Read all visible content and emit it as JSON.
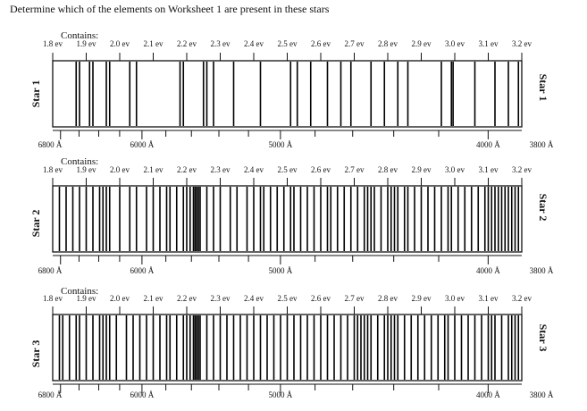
{
  "heading": "Determine which of the elements on Worksheet 1 are present in these stars",
  "contains_label": "Contains:",
  "ev_ticks": [
    "1.8 ev",
    "1.9 ev",
    "2.0 ev",
    "2.1 ev",
    "2.2 ev",
    "2.3 ev",
    "2.4 ev",
    "2.5 ev",
    "2.6 ev",
    "2.7 ev",
    "2.8 ev",
    "2.9 ev",
    "3.0 ev",
    "3.1 ev",
    "3.2 ev"
  ],
  "wavelength_ticks": [
    "6800 Å",
    "6000 Å",
    "5000 Å",
    "4000 Å",
    "3800 Å"
  ],
  "stars": [
    {
      "name": "Star 1",
      "line_energies_ev": [
        1.87,
        1.88,
        1.91,
        1.92,
        1.96,
        1.97,
        2.03,
        2.05,
        2.18,
        2.19,
        2.25,
        2.26,
        2.28,
        2.34,
        2.42,
        2.51,
        2.53,
        2.57,
        2.62,
        2.66,
        2.69,
        2.75,
        2.79,
        2.83,
        2.86,
        2.96,
        2.99,
        2.995,
        3.06,
        3.12,
        3.16,
        3.19
      ]
    },
    {
      "name": "Star 2",
      "line_energies_ev": [
        1.82,
        1.84,
        1.86,
        1.88,
        1.9,
        1.92,
        1.94,
        1.95,
        1.96,
        1.97,
        2.0,
        2.03,
        2.05,
        2.08,
        2.1,
        2.12,
        2.14,
        2.15,
        2.17,
        2.19,
        2.2,
        2.21,
        2.22,
        2.225,
        2.23,
        2.235,
        2.24,
        2.26,
        2.28,
        2.3,
        2.33,
        2.35,
        2.38,
        2.4,
        2.42,
        2.43,
        2.45,
        2.47,
        2.49,
        2.51,
        2.52,
        2.54,
        2.56,
        2.58,
        2.6,
        2.62,
        2.63,
        2.65,
        2.67,
        2.69,
        2.71,
        2.73,
        2.74,
        2.75,
        2.76,
        2.78,
        2.8,
        2.81,
        2.82,
        2.83,
        2.85,
        2.86,
        2.88,
        2.9,
        2.92,
        2.94,
        2.96,
        2.98,
        2.99,
        3.01,
        3.03,
        3.05,
        3.07,
        3.09,
        3.1,
        3.11,
        3.12,
        3.13,
        3.14,
        3.15,
        3.16,
        3.17,
        3.18,
        3.19
      ]
    },
    {
      "name": "Star 3",
      "line_energies_ev": [
        1.82,
        1.83,
        1.85,
        1.87,
        1.88,
        1.9,
        1.92,
        1.94,
        1.95,
        1.96,
        1.97,
        1.99,
        2.02,
        2.04,
        2.06,
        2.08,
        2.1,
        2.12,
        2.14,
        2.15,
        2.17,
        2.19,
        2.2,
        2.21,
        2.22,
        2.225,
        2.23,
        2.235,
        2.24,
        2.26,
        2.28,
        2.3,
        2.32,
        2.34,
        2.36,
        2.38,
        2.4,
        2.42,
        2.44,
        2.46,
        2.48,
        2.5,
        2.52,
        2.54,
        2.56,
        2.58,
        2.6,
        2.62,
        2.64,
        2.66,
        2.68,
        2.7,
        2.71,
        2.72,
        2.73,
        2.74,
        2.75,
        2.77,
        2.79,
        2.8,
        2.81,
        2.82,
        2.83,
        2.85,
        2.87,
        2.89,
        2.91,
        2.93,
        2.95,
        2.97,
        2.98,
        3.0,
        3.02,
        3.04,
        3.06,
        3.08,
        3.1,
        3.11,
        3.12,
        3.14,
        3.16,
        3.17,
        3.18,
        3.19
      ]
    }
  ],
  "line_color": "#000000",
  "axis_color": "#111111"
}
